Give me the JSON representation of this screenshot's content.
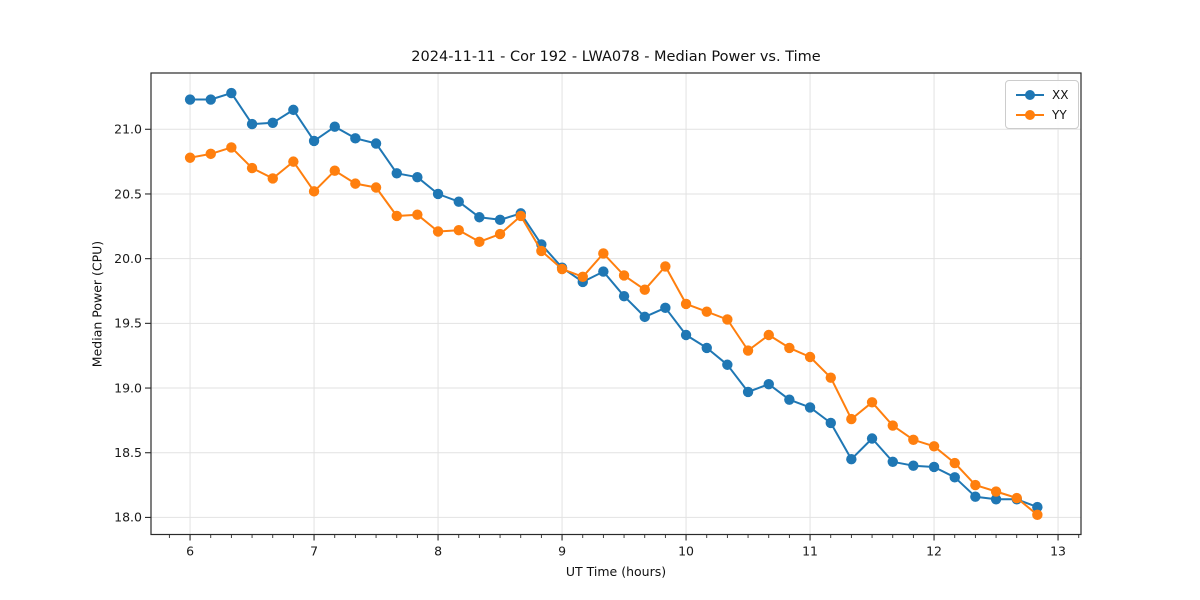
{
  "chart_data": {
    "type": "line",
    "title": "2024-11-11 - Cor 192 - LWA078 - Median Power vs. Time",
    "xlabel": "UT Time (hours)",
    "ylabel": "Median Power (CPU)",
    "xlim": [
      5.685,
      13.185
    ],
    "ylim": [
      17.868,
      21.435
    ],
    "xticks": [
      6,
      7,
      8,
      9,
      10,
      11,
      12,
      13
    ],
    "xtick_labels": [
      "6",
      "7",
      "8",
      "9",
      "10",
      "11",
      "12",
      "13"
    ],
    "yticks": [
      18.0,
      18.5,
      19.0,
      19.5,
      20.0,
      20.5,
      21.0
    ],
    "ytick_labels": [
      "18.0",
      "18.5",
      "19.0",
      "19.5",
      "20.0",
      "20.5",
      "21.0"
    ],
    "minor_xtick_step_hours": 0.16667,
    "grid": "major-on",
    "legend_position": "upper-right",
    "x": [
      6.0,
      6.167,
      6.333,
      6.5,
      6.667,
      6.833,
      7.0,
      7.167,
      7.333,
      7.5,
      7.667,
      7.833,
      8.0,
      8.167,
      8.333,
      8.5,
      8.667,
      8.833,
      9.0,
      9.167,
      9.333,
      9.5,
      9.667,
      9.833,
      10.0,
      10.167,
      10.333,
      10.5,
      10.667,
      10.833,
      11.0,
      11.167,
      11.333,
      11.5,
      11.667,
      11.833,
      12.0,
      12.167,
      12.333,
      12.5,
      12.667,
      12.833
    ],
    "series": [
      {
        "name": "XX",
        "color": "#1f77b4",
        "values": [
          21.23,
          21.23,
          21.28,
          21.04,
          21.05,
          21.15,
          20.91,
          21.02,
          20.93,
          20.89,
          20.66,
          20.63,
          20.5,
          20.44,
          20.32,
          20.3,
          20.35,
          20.11,
          19.93,
          19.82,
          19.9,
          19.71,
          19.55,
          19.62,
          19.41,
          19.31,
          19.18,
          18.97,
          19.03,
          18.91,
          18.85,
          18.73,
          18.45,
          18.61,
          18.43,
          18.4,
          18.39,
          18.31,
          18.16,
          18.14,
          18.14,
          18.08
        ]
      },
      {
        "name": "YY",
        "color": "#ff7f0e",
        "values": [
          20.78,
          20.81,
          20.86,
          20.7,
          20.62,
          20.75,
          20.52,
          20.68,
          20.58,
          20.55,
          20.33,
          20.34,
          20.21,
          20.22,
          20.13,
          20.19,
          20.33,
          20.06,
          19.92,
          19.86,
          20.04,
          19.87,
          19.76,
          19.94,
          19.65,
          19.59,
          19.53,
          19.29,
          19.41,
          19.31,
          19.24,
          19.08,
          18.76,
          18.89,
          18.71,
          18.6,
          18.55,
          18.42,
          18.25,
          18.2,
          18.15,
          18.02
        ]
      }
    ],
    "colors": {
      "grid": "#e2e2e2",
      "spine": "#2a2a2a",
      "background": "#ffffff"
    }
  }
}
